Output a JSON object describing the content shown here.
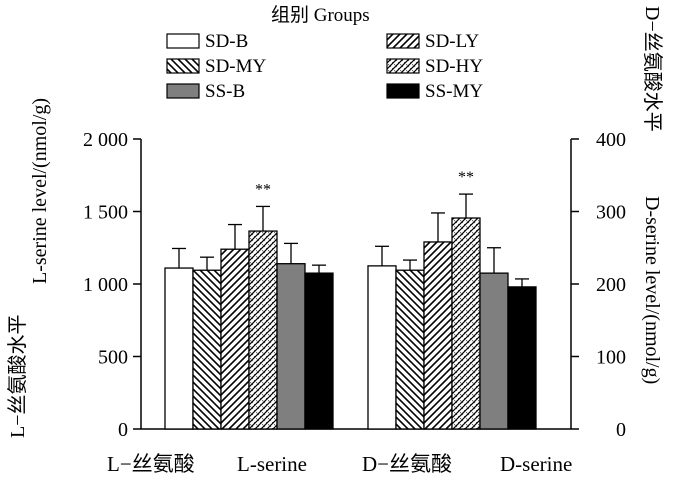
{
  "chart_data": {
    "type": "bar",
    "categories": [
      "L−丝氨酸  L-serine",
      "D−丝氨酸  D-serine"
    ],
    "category_labels": [
      {
        "cn": "L−丝氨酸",
        "en": "L-serine"
      },
      {
        "cn": "D−丝氨酸",
        "en": "D-serine"
      }
    ],
    "legend_title": "组别 Groups",
    "legend_placement": "top-center",
    "series": [
      {
        "name": "SD-B",
        "pattern": "white",
        "values": [
          1110,
          225
        ],
        "errors": [
          135,
          27
        ]
      },
      {
        "name": "SD-MY",
        "pattern": "hatch-back",
        "values": [
          1095,
          219
        ],
        "errors": [
          90,
          14
        ]
      },
      {
        "name": "SS-B",
        "pattern": "gray",
        "values": [
          1140,
          215
        ],
        "errors": [
          140,
          35
        ]
      },
      {
        "name": "SD-LY",
        "pattern": "hatch-fwd",
        "values": [
          1240,
          258
        ],
        "errors": [
          170,
          40
        ]
      },
      {
        "name": "SD-HY",
        "pattern": "crosshatch",
        "values": [
          1365,
          291
        ],
        "errors": [
          170,
          33
        ]
      },
      {
        "name": "SS-MY",
        "pattern": "black",
        "values": [
          1075,
          196
        ],
        "errors": [
          55,
          11
        ]
      }
    ],
    "bar_order": [
      "SD-B",
      "SD-MY",
      "SD-LY",
      "SD-HY",
      "SS-B",
      "SS-MY"
    ],
    "significance": [
      {
        "category_index": 0,
        "series": "SD-HY",
        "label": "**"
      },
      {
        "category_index": 1,
        "series": "SD-HY",
        "label": "**"
      }
    ],
    "y_left": {
      "label_cn": "L−丝氨酸水平",
      "label_en": "L-serine level/(nmol/g)",
      "ylim": [
        0,
        2000
      ],
      "ticks": [
        0,
        500,
        1000,
        1500,
        2000
      ],
      "tick_labels": [
        "0",
        "500",
        "1 000",
        "1 500",
        "2 000"
      ]
    },
    "y_right": {
      "label_cn": "D−丝氨酸水平",
      "label_en": "D-serine level/(nmol/g)",
      "ylim": [
        0,
        400
      ],
      "ticks": [
        0,
        100,
        200,
        300,
        400
      ],
      "tick_labels": [
        "0",
        "100",
        "200",
        "300",
        "400"
      ]
    },
    "grid": false
  }
}
